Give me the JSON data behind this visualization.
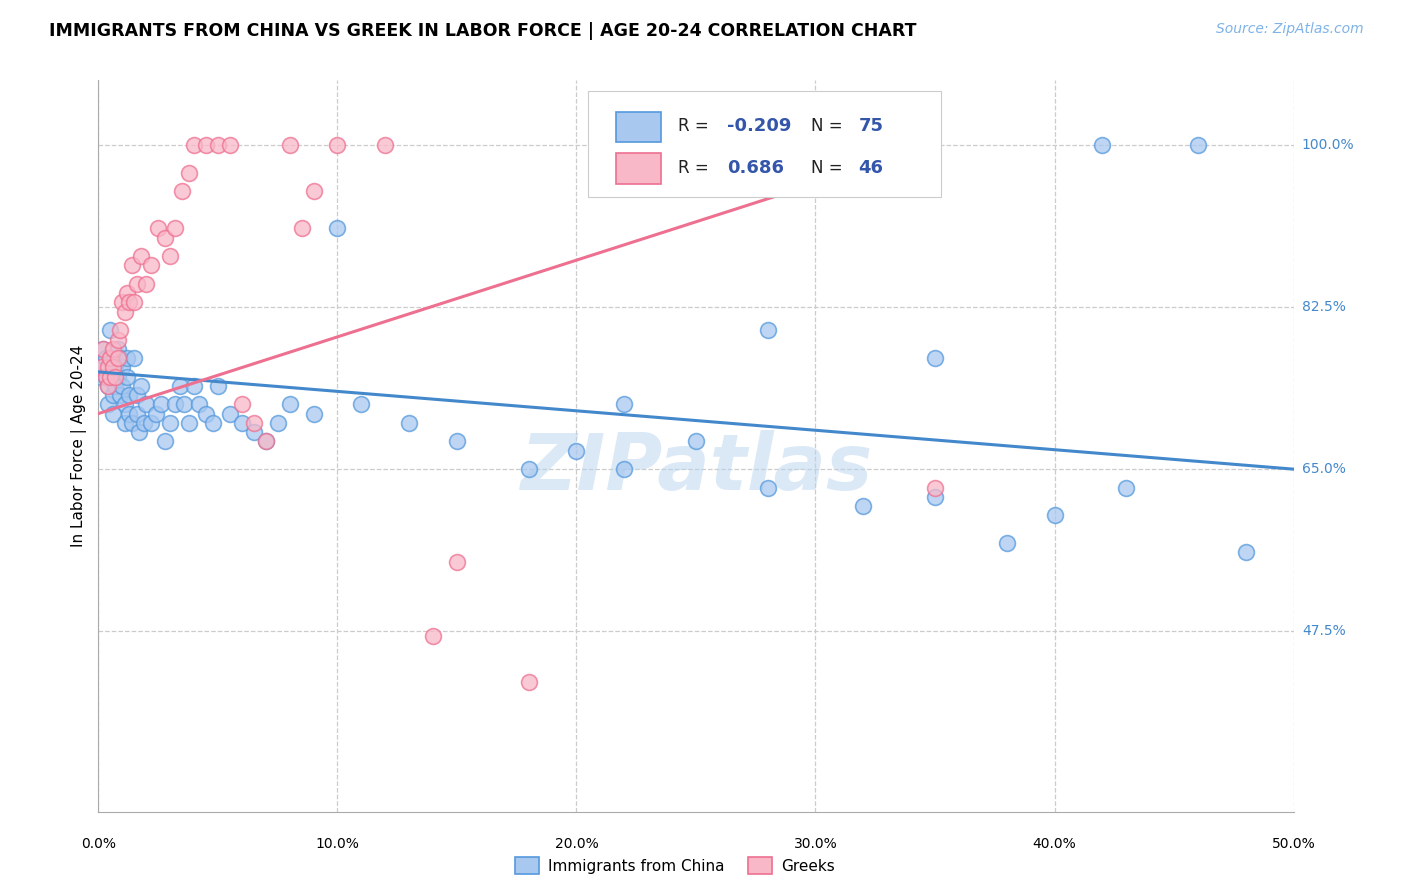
{
  "title": "IMMIGRANTS FROM CHINA VS GREEK IN LABOR FORCE | AGE 20-24 CORRELATION CHART",
  "source": "Source: ZipAtlas.com",
  "ylabel": "In Labor Force | Age 20-24",
  "yticks": [
    100.0,
    82.5,
    65.0,
    47.5
  ],
  "ytick_labels": [
    "100.0%",
    "82.5%",
    "65.0%",
    "47.5%"
  ],
  "xtick_labels": [
    "0.0%",
    "10.0%",
    "20.0%",
    "30.0%",
    "40.0%",
    "50.0%"
  ],
  "xmin": 0.0,
  "xmax": 0.5,
  "ymin": 28.0,
  "ymax": 107.0,
  "legend_china_R": "-0.209",
  "legend_china_N": "75",
  "legend_greek_R": "0.686",
  "legend_greek_N": "46",
  "color_china_fill": "#A8C8F0",
  "color_china_edge": "#5599DD",
  "color_greek_fill": "#F8B8C8",
  "color_greek_edge": "#EE7090",
  "color_china_line": "#4488CC",
  "color_greek_line": "#EE7090",
  "watermark": "ZIPatlas",
  "china_line_x0": 0.0,
  "china_line_x1": 0.5,
  "china_line_y0": 75.5,
  "china_line_y1": 65.0,
  "greek_line_x0": 0.0,
  "greek_line_x1": 0.35,
  "greek_line_y0": 71.0,
  "greek_line_y1": 100.0,
  "china_x": [
    0.001,
    0.001,
    0.002,
    0.003,
    0.003,
    0.004,
    0.004,
    0.005,
    0.005,
    0.005,
    0.006,
    0.006,
    0.007,
    0.007,
    0.008,
    0.008,
    0.009,
    0.009,
    0.01,
    0.01,
    0.011,
    0.011,
    0.012,
    0.012,
    0.013,
    0.013,
    0.014,
    0.015,
    0.016,
    0.016,
    0.017,
    0.018,
    0.019,
    0.02,
    0.022,
    0.024,
    0.026,
    0.028,
    0.03,
    0.032,
    0.034,
    0.036,
    0.038,
    0.04,
    0.042,
    0.045,
    0.048,
    0.05,
    0.055,
    0.06,
    0.065,
    0.07,
    0.075,
    0.08,
    0.09,
    0.1,
    0.11,
    0.13,
    0.15,
    0.18,
    0.2,
    0.22,
    0.25,
    0.28,
    0.32,
    0.35,
    0.38,
    0.4,
    0.43,
    0.46,
    0.35,
    0.28,
    0.22,
    0.48,
    0.42
  ],
  "china_y": [
    76.0,
    75.0,
    78.0,
    77.0,
    75.0,
    74.0,
    72.0,
    80.0,
    77.0,
    75.0,
    73.0,
    71.0,
    76.0,
    74.0,
    78.0,
    75.0,
    77.0,
    73.0,
    76.0,
    74.0,
    72.0,
    70.0,
    77.0,
    75.0,
    73.0,
    71.0,
    70.0,
    77.0,
    73.0,
    71.0,
    69.0,
    74.0,
    70.0,
    72.0,
    70.0,
    71.0,
    72.0,
    68.0,
    70.0,
    72.0,
    74.0,
    72.0,
    70.0,
    74.0,
    72.0,
    71.0,
    70.0,
    74.0,
    71.0,
    70.0,
    69.0,
    68.0,
    70.0,
    72.0,
    71.0,
    91.0,
    72.0,
    70.0,
    68.0,
    65.0,
    67.0,
    65.0,
    68.0,
    63.0,
    61.0,
    62.0,
    57.0,
    60.0,
    63.0,
    100.0,
    77.0,
    80.0,
    72.0,
    56.0,
    100.0
  ],
  "greek_x": [
    0.001,
    0.002,
    0.003,
    0.004,
    0.004,
    0.005,
    0.005,
    0.006,
    0.006,
    0.007,
    0.008,
    0.008,
    0.009,
    0.01,
    0.011,
    0.012,
    0.013,
    0.014,
    0.015,
    0.016,
    0.018,
    0.02,
    0.022,
    0.025,
    0.028,
    0.03,
    0.032,
    0.035,
    0.038,
    0.04,
    0.045,
    0.05,
    0.055,
    0.06,
    0.065,
    0.07,
    0.08,
    0.085,
    0.09,
    0.1,
    0.12,
    0.14,
    0.18,
    0.32,
    0.35,
    0.15
  ],
  "greek_y": [
    76.0,
    78.0,
    75.0,
    76.0,
    74.0,
    77.0,
    75.0,
    78.0,
    76.0,
    75.0,
    79.0,
    77.0,
    80.0,
    83.0,
    82.0,
    84.0,
    83.0,
    87.0,
    83.0,
    85.0,
    88.0,
    85.0,
    87.0,
    91.0,
    90.0,
    88.0,
    91.0,
    95.0,
    97.0,
    100.0,
    100.0,
    100.0,
    100.0,
    72.0,
    70.0,
    68.0,
    100.0,
    91.0,
    95.0,
    100.0,
    100.0,
    47.0,
    42.0,
    100.0,
    63.0,
    55.0
  ]
}
